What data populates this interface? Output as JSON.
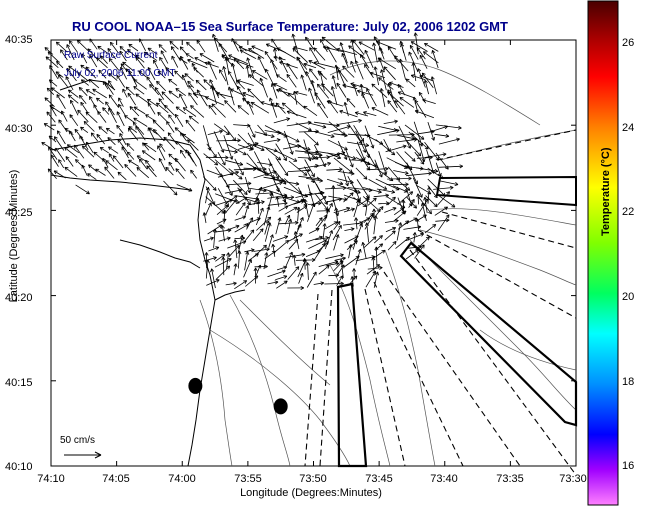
{
  "title": "RU COOL  NOAA–15  Sea Surface Temperature:  July 02, 2006 1202 GMT",
  "legend_line1": "Raw Surface Current",
  "legend_line2": "July 02, 2006 11:00 GMT",
  "scale_label": "50 cm/s",
  "xlabel": "Longitude (Degrees:Minutes)",
  "ylabel": "Latitude (Degrees:Minutes)",
  "colorbar_label": "Temperature (°C)",
  "x_ticks": [
    "74:10",
    "74:05",
    "74:00",
    "73:55",
    "73:50",
    "73:45",
    "73:40",
    "73:35",
    "73:30"
  ],
  "y_ticks": [
    "40:35",
    "40:30",
    "40:25",
    "40:20",
    "40:15",
    "40:10"
  ],
  "colorbar_ticks": [
    "26",
    "24",
    "22",
    "20",
    "18",
    "16"
  ],
  "colors": {
    "title": "#00008b",
    "legend_text": "#00008b",
    "coast": "#555555"
  },
  "chart_data": {
    "type": "map",
    "x_range": [
      "74:10",
      "73:30"
    ],
    "y_range": [
      "40:10",
      "40:35"
    ],
    "colorbar_range": [
      15.2,
      27.2
    ],
    "markers": [
      {
        "lon": "73:59",
        "lat": "40:14.7",
        "symbol": "filled-ellipse"
      },
      {
        "lon": "73:52.5",
        "lat": "40:13.5",
        "symbol": "filled-ellipse"
      }
    ]
  }
}
